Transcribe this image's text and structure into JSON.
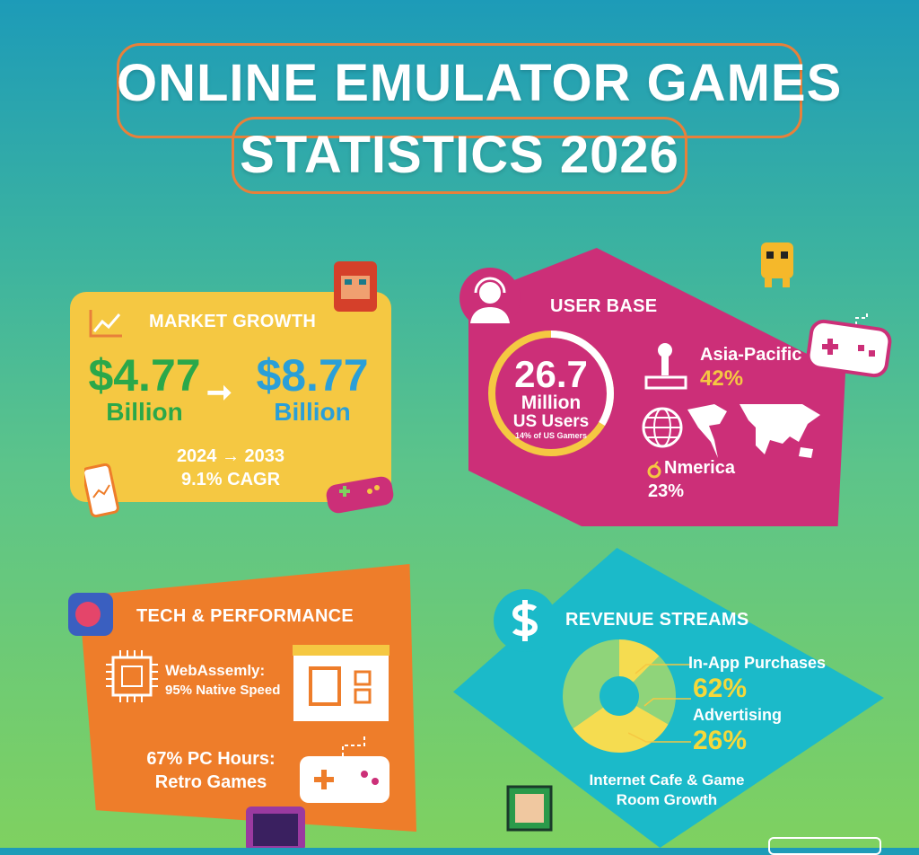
{
  "title": {
    "line1": "ONLINE EMULATOR GAMES",
    "line2": "STATISTICS 2026"
  },
  "market": {
    "heading": "MARKET GROWTH",
    "from_value": "$4.77",
    "from_unit": "Billion",
    "to_value": "$8.77",
    "to_unit": "Billion",
    "years": "2024 → 2033",
    "cagr": "9.1% CAGR"
  },
  "user_base": {
    "heading": "USER BASE",
    "users_value": "26.7",
    "users_unit": "Million",
    "users_label": "US Users",
    "users_note": "14% of US Gamers",
    "users_share": 0.14,
    "regions": [
      {
        "name": "Asia-Pacific",
        "value": "42%"
      },
      {
        "name": "Nmerica",
        "value": "23%"
      }
    ]
  },
  "tech": {
    "heading": "TECH & PERFORMANCE",
    "wasm_label": "WebAssemly:",
    "wasm_value": "95% Native Speed",
    "pc_label": "67% PC Hours:",
    "pc_value": "Retro Games"
  },
  "revenue": {
    "heading": "REVENUE STREAMS",
    "items": [
      {
        "name": "In-App Purchases",
        "value": "62%"
      },
      {
        "name": "Advertising",
        "value": "26%"
      }
    ],
    "footer": "Internet Cafe & Game Room Growth"
  },
  "colors": {
    "orange": "#ee7d2a",
    "yellow": "#f5c842",
    "pink": "#cc2f78",
    "teal": "#1bbac9",
    "green_value": "#2aa84a",
    "blue_value": "#2a9fd8"
  }
}
